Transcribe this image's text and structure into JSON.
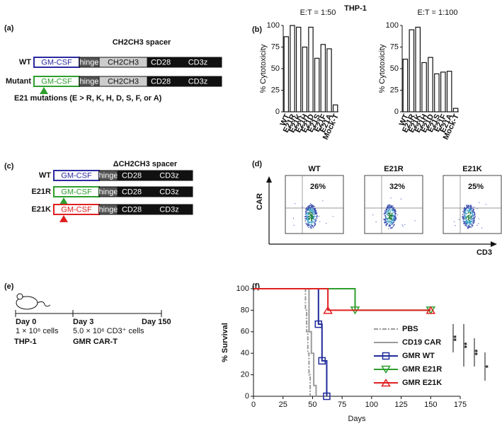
{
  "panel_labels": [
    "(a)",
    "(b)",
    "(c)",
    "(d)",
    "(e)",
    "(f)"
  ],
  "panel_a": {
    "title": "CH2CH3 spacer",
    "rows": [
      {
        "label": "WT",
        "color": "#2a2aa0",
        "parts": [
          "GM-CSF",
          "hinge",
          "CH2CH3",
          "CD28",
          "CD3z"
        ]
      },
      {
        "label": "Mutant",
        "color": "#2e9e2e",
        "parts": [
          "GM-CSF",
          "hinge",
          "CH2CH3",
          "CD28",
          "CD3z"
        ]
      }
    ],
    "note": "E21 mutations (E > R, K, H, D, S, F, or A)"
  },
  "panel_b_title": "THP-1",
  "panel_c": {
    "title": "ΔCH2CH3 spacer",
    "rows": [
      {
        "label": "WT",
        "color": "#2a2aa0",
        "parts": [
          "GM-CSF",
          "hinge",
          "CD28",
          "CD3z"
        ]
      },
      {
        "label": "E21R",
        "color": "#2e9e2e",
        "parts": [
          "GM-CSF",
          "hinge",
          "CD28",
          "CD3z"
        ]
      },
      {
        "label": "E21K",
        "color": "#e02020",
        "parts": [
          "GM-CSF",
          "hinge",
          "CD28",
          "CD3z"
        ]
      }
    ]
  },
  "panel_d": {
    "y_axis": "CAR",
    "x_axis": "CD3",
    "plots": [
      {
        "title": "WT",
        "percent": "26%"
      },
      {
        "title": "E21R",
        "percent": "32%"
      },
      {
        "title": "E21K",
        "percent": "25%"
      }
    ]
  },
  "panel_e": {
    "days": [
      "Day 0",
      "Day 3",
      "Day 150"
    ],
    "doses": [
      "1 × 10⁶ cells",
      "5.0 × 10⁶ CD3⁺ cells"
    ],
    "agents": [
      "THP-1",
      "GMR CAR-T"
    ]
  },
  "chart_data": [
    {
      "type": "bar",
      "title": "E:T = 1:50",
      "y_label": "% Cytotoxicity",
      "categories": [
        "WT",
        "E21R",
        "E21K",
        "E21H",
        "E21D",
        "E21S",
        "E21F",
        "E21A",
        "Mock-T"
      ],
      "values": [
        87,
        100,
        98,
        75,
        98,
        62,
        78,
        73,
        8
      ],
      "color": "#ffffff",
      "ylim": [
        0,
        100
      ],
      "yticks": [
        0,
        25,
        50,
        75,
        100
      ]
    },
    {
      "type": "bar",
      "title": "E:T = 1:100",
      "y_label": "% Cytotoxicity",
      "categories": [
        "WT",
        "E21R",
        "E21K",
        "E21H",
        "E21D",
        "E21S",
        "E21F",
        "E21A",
        "Mock-T"
      ],
      "values": [
        61,
        95,
        98,
        57,
        63,
        44,
        46,
        47,
        4
      ],
      "color": "#ffffff",
      "ylim": [
        0,
        100
      ],
      "yticks": [
        0,
        25,
        50,
        75,
        100
      ]
    },
    {
      "type": "step",
      "x_label": "Days",
      "y_label": "% Survival",
      "xlim": [
        0,
        175
      ],
      "xticks": [
        0,
        25,
        50,
        75,
        100,
        125,
        150,
        175
      ],
      "ylim": [
        0,
        100
      ],
      "yticks": [
        0,
        20,
        40,
        60,
        80,
        100
      ],
      "series": [
        {
          "name": "PBS",
          "color": "#9a9a9a",
          "dash": "dashdot",
          "marker": null,
          "x": [
            0,
            44,
            45,
            46,
            47,
            48
          ],
          "values": [
            100,
            80,
            60,
            40,
            20,
            0
          ]
        },
        {
          "name": "CD19 CAR",
          "color": "#9a9a9a",
          "dash": null,
          "marker": null,
          "x": [
            0,
            47,
            49,
            51,
            53
          ],
          "values": [
            100,
            60,
            40,
            10,
            0
          ]
        },
        {
          "name": "GMR WT",
          "color": "#1f2a9c",
          "dash": null,
          "marker": "square",
          "x": [
            0,
            55,
            58,
            62
          ],
          "values": [
            100,
            67,
            33,
            0
          ]
        },
        {
          "name": "GMR E21R",
          "color": "#2e9e2e",
          "dash": null,
          "marker": "triangle-down",
          "x": [
            0,
            86,
            150
          ],
          "values": [
            100,
            80,
            80
          ]
        },
        {
          "name": "GMR E21K",
          "color": "#e02020",
          "dash": null,
          "marker": "triangle-up",
          "x": [
            0,
            63,
            150
          ],
          "values": [
            100,
            80,
            80
          ]
        }
      ],
      "annotations": [
        "**",
        "**",
        "**",
        "*"
      ]
    }
  ]
}
